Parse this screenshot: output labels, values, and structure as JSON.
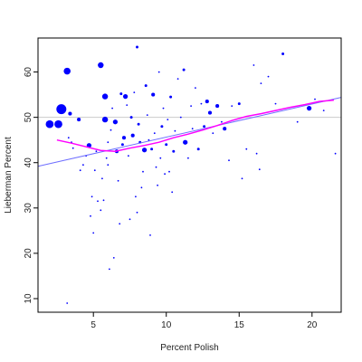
{
  "chart_data": {
    "type": "scatter",
    "title": "",
    "xlabel": "Percent Polish",
    "ylabel": "Lieberman Percent",
    "xlim": [
      1.2,
      22.0
    ],
    "ylim": [
      7.0,
      67.5
    ],
    "xticks": [
      "5",
      "10",
      "15",
      "20"
    ],
    "xtick_values": [
      5,
      10,
      15,
      20
    ],
    "yticks": [
      "10",
      "20",
      "30",
      "40",
      "50",
      "60"
    ],
    "ytick_values": [
      10,
      20,
      30,
      40,
      50,
      60
    ],
    "grid": false,
    "legend": "none",
    "colors": {
      "points": "#0000ff",
      "fit_line": "#6f6fff",
      "smooth_line": "#ff00ff",
      "reference_line": "#cccccc",
      "axes": "#000000"
    },
    "reference_line_y": 50,
    "linear_fit": {
      "x": [
        1.2,
        22.0
      ],
      "y": [
        39.2,
        54.4
      ]
    },
    "smooth_curve": {
      "x": [
        2.5,
        3.5,
        4.5,
        5.5,
        6.5,
        7.5,
        8.5,
        9.5,
        10.5,
        11.5,
        12.5,
        13.5,
        14.5,
        15.5,
        16.5,
        17.5,
        18.5,
        19.5,
        20.5,
        21.5
      ],
      "y": [
        45.0,
        44.3,
        43.5,
        42.7,
        42.5,
        43.2,
        43.8,
        44.5,
        45.5,
        46.3,
        47.2,
        48.2,
        49.3,
        50.2,
        50.8,
        51.5,
        52.2,
        52.8,
        53.5,
        53.8
      ]
    },
    "series": [
      {
        "points": [
          {
            "x": 2.0,
            "y": 48.5,
            "w": 4
          },
          {
            "x": 2.6,
            "y": 48.5,
            "w": 4
          },
          {
            "x": 2.8,
            "y": 51.8,
            "w": 5
          },
          {
            "x": 3.2,
            "y": 60.2,
            "w": 3.5
          },
          {
            "x": 3.4,
            "y": 50.8,
            "w": 2
          },
          {
            "x": 3.5,
            "y": 44.5,
            "w": 1
          },
          {
            "x": 3.6,
            "y": 43.2,
            "w": 1
          },
          {
            "x": 3.3,
            "y": 45.5,
            "w": 1
          },
          {
            "x": 3.2,
            "y": 9.0,
            "w": 1
          },
          {
            "x": 4.0,
            "y": 49.5,
            "w": 2
          },
          {
            "x": 4.1,
            "y": 38.3,
            "w": 1
          },
          {
            "x": 4.5,
            "y": 41.5,
            "w": 1
          },
          {
            "x": 4.3,
            "y": 39.5,
            "w": 1
          },
          {
            "x": 4.7,
            "y": 43.8,
            "w": 2.5
          },
          {
            "x": 4.8,
            "y": 28.2,
            "w": 1
          },
          {
            "x": 4.9,
            "y": 32.5,
            "w": 1
          },
          {
            "x": 5.0,
            "y": 24.5,
            "w": 1
          },
          {
            "x": 5.1,
            "y": 38.3,
            "w": 1
          },
          {
            "x": 5.2,
            "y": 42.5,
            "w": 1
          },
          {
            "x": 5.3,
            "y": 31.5,
            "w": 1
          },
          {
            "x": 5.5,
            "y": 61.5,
            "w": 3
          },
          {
            "x": 5.5,
            "y": 29.5,
            "w": 1
          },
          {
            "x": 5.6,
            "y": 36.5,
            "w": 1
          },
          {
            "x": 5.7,
            "y": 31.7,
            "w": 1
          },
          {
            "x": 5.8,
            "y": 54.6,
            "w": 3
          },
          {
            "x": 5.8,
            "y": 49.5,
            "w": 3
          },
          {
            "x": 5.9,
            "y": 41.0,
            "w": 1
          },
          {
            "x": 6.0,
            "y": 44.5,
            "w": 1
          },
          {
            "x": 6.0,
            "y": 39.5,
            "w": 1
          },
          {
            "x": 6.1,
            "y": 16.5,
            "w": 1
          },
          {
            "x": 6.2,
            "y": 47.2,
            "w": 1
          },
          {
            "x": 6.3,
            "y": 52.0,
            "w": 1
          },
          {
            "x": 6.4,
            "y": 19.0,
            "w": 1
          },
          {
            "x": 6.5,
            "y": 49.0,
            "w": 2.5
          },
          {
            "x": 6.6,
            "y": 42.5,
            "w": 2
          },
          {
            "x": 6.7,
            "y": 36.0,
            "w": 1
          },
          {
            "x": 6.8,
            "y": 26.5,
            "w": 1
          },
          {
            "x": 6.9,
            "y": 55.2,
            "w": 1.5
          },
          {
            "x": 7.0,
            "y": 44.0,
            "w": 1.5
          },
          {
            "x": 7.1,
            "y": 45.5,
            "w": 2
          },
          {
            "x": 7.2,
            "y": 54.6,
            "w": 2.5
          },
          {
            "x": 7.3,
            "y": 52.7,
            "w": 1
          },
          {
            "x": 7.4,
            "y": 41.5,
            "w": 1
          },
          {
            "x": 7.5,
            "y": 27.5,
            "w": 1
          },
          {
            "x": 7.6,
            "y": 50.0,
            "w": 1.5
          },
          {
            "x": 7.7,
            "y": 46.0,
            "w": 2
          },
          {
            "x": 7.8,
            "y": 55.5,
            "w": 1
          },
          {
            "x": 7.9,
            "y": 32.5,
            "w": 1
          },
          {
            "x": 8.0,
            "y": 65.5,
            "w": 1.5
          },
          {
            "x": 8.1,
            "y": 48.5,
            "w": 1.5
          },
          {
            "x": 8.2,
            "y": 44.5,
            "w": 1.5
          },
          {
            "x": 8.3,
            "y": 34.5,
            "w": 1
          },
          {
            "x": 8.4,
            "y": 38.0,
            "w": 1
          },
          {
            "x": 8.5,
            "y": 42.8,
            "w": 2.5
          },
          {
            "x": 8.6,
            "y": 57.0,
            "w": 1.5
          },
          {
            "x": 8.7,
            "y": 50.5,
            "w": 1
          },
          {
            "x": 8.8,
            "y": 45.0,
            "w": 1
          },
          {
            "x": 8.9,
            "y": 24.0,
            "w": 1
          },
          {
            "x": 9.0,
            "y": 43.0,
            "w": 1.5
          },
          {
            "x": 9.1,
            "y": 55.0,
            "w": 2
          },
          {
            "x": 9.2,
            "y": 46.5,
            "w": 1
          },
          {
            "x": 9.3,
            "y": 39.0,
            "w": 1
          },
          {
            "x": 9.4,
            "y": 35.0,
            "w": 1
          },
          {
            "x": 9.5,
            "y": 60.0,
            "w": 1
          },
          {
            "x": 9.6,
            "y": 41.0,
            "w": 1
          },
          {
            "x": 9.7,
            "y": 48.0,
            "w": 1.5
          },
          {
            "x": 9.8,
            "y": 52.0,
            "w": 1
          },
          {
            "x": 9.9,
            "y": 37.5,
            "w": 1
          },
          {
            "x": 10.0,
            "y": 44.0,
            "w": 1.5
          },
          {
            "x": 10.1,
            "y": 49.5,
            "w": 1
          },
          {
            "x": 10.2,
            "y": 38.0,
            "w": 1
          },
          {
            "x": 10.3,
            "y": 54.5,
            "w": 1.5
          },
          {
            "x": 10.4,
            "y": 33.5,
            "w": 1
          },
          {
            "x": 10.5,
            "y": 42.5,
            "w": 1.5
          },
          {
            "x": 10.6,
            "y": 47.0,
            "w": 1
          },
          {
            "x": 10.8,
            "y": 58.5,
            "w": 1
          },
          {
            "x": 11.0,
            "y": 50.0,
            "w": 1
          },
          {
            "x": 11.2,
            "y": 60.5,
            "w": 1.5
          },
          {
            "x": 11.3,
            "y": 44.5,
            "w": 2.5
          },
          {
            "x": 11.5,
            "y": 41.0,
            "w": 1
          },
          {
            "x": 11.7,
            "y": 52.5,
            "w": 1
          },
          {
            "x": 11.8,
            "y": 47.5,
            "w": 1
          },
          {
            "x": 12.0,
            "y": 56.5,
            "w": 1
          },
          {
            "x": 12.2,
            "y": 43.0,
            "w": 1.5
          },
          {
            "x": 12.4,
            "y": 53.0,
            "w": 1
          },
          {
            "x": 12.6,
            "y": 48.0,
            "w": 1.5
          },
          {
            "x": 12.8,
            "y": 53.5,
            "w": 2
          },
          {
            "x": 13.0,
            "y": 51.0,
            "w": 2
          },
          {
            "x": 13.2,
            "y": 46.5,
            "w": 1
          },
          {
            "x": 13.5,
            "y": 52.5,
            "w": 2
          },
          {
            "x": 13.8,
            "y": 49.0,
            "w": 1
          },
          {
            "x": 14.0,
            "y": 47.5,
            "w": 2
          },
          {
            "x": 14.3,
            "y": 40.5,
            "w": 1
          },
          {
            "x": 14.5,
            "y": 52.5,
            "w": 1
          },
          {
            "x": 15.0,
            "y": 53.0,
            "w": 1.5
          },
          {
            "x": 15.2,
            "y": 36.5,
            "w": 1
          },
          {
            "x": 15.5,
            "y": 43.0,
            "w": 1
          },
          {
            "x": 16.0,
            "y": 61.5,
            "w": 1
          },
          {
            "x": 16.2,
            "y": 42.0,
            "w": 1
          },
          {
            "x": 16.4,
            "y": 38.5,
            "w": 1
          },
          {
            "x": 16.5,
            "y": 57.5,
            "w": 1
          },
          {
            "x": 17.0,
            "y": 59.0,
            "w": 1
          },
          {
            "x": 17.5,
            "y": 53.0,
            "w": 1
          },
          {
            "x": 18.0,
            "y": 64.0,
            "w": 1.5
          },
          {
            "x": 19.0,
            "y": 49.0,
            "w": 1
          },
          {
            "x": 19.8,
            "y": 52.0,
            "w": 2.5
          },
          {
            "x": 20.2,
            "y": 54.0,
            "w": 1
          },
          {
            "x": 21.6,
            "y": 42.0,
            "w": 1
          },
          {
            "x": 20.8,
            "y": 51.5,
            "w": 1
          },
          {
            "x": 8.0,
            "y": 29.0,
            "w": 1
          }
        ]
      }
    ]
  }
}
